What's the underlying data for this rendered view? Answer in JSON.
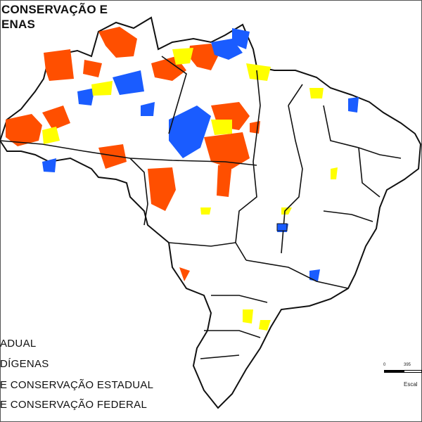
{
  "title": {
    "line1": "CONSERVAÇÃO E",
    "line2": "ENAS"
  },
  "legend": {
    "items": [
      {
        "label": "ADUAL",
        "color": "#ffff00"
      },
      {
        "label": "DÍGENAS",
        "color": "#ff4f00"
      },
      {
        "label": "E CONSERVAÇÃO ESTADUAL",
        "color": "#ffff00"
      },
      {
        "label": "E CONSERVAÇÃO FEDERAL",
        "color": "#1a5cff"
      }
    ]
  },
  "scale": {
    "ticks": [
      "0",
      "395"
    ],
    "label": "Escal"
  },
  "colors": {
    "indigenous": "#ff4f00",
    "state_uc": "#ffff00",
    "federal_uc": "#1a5cff",
    "land": "#ffffff",
    "border": "#111111"
  }
}
